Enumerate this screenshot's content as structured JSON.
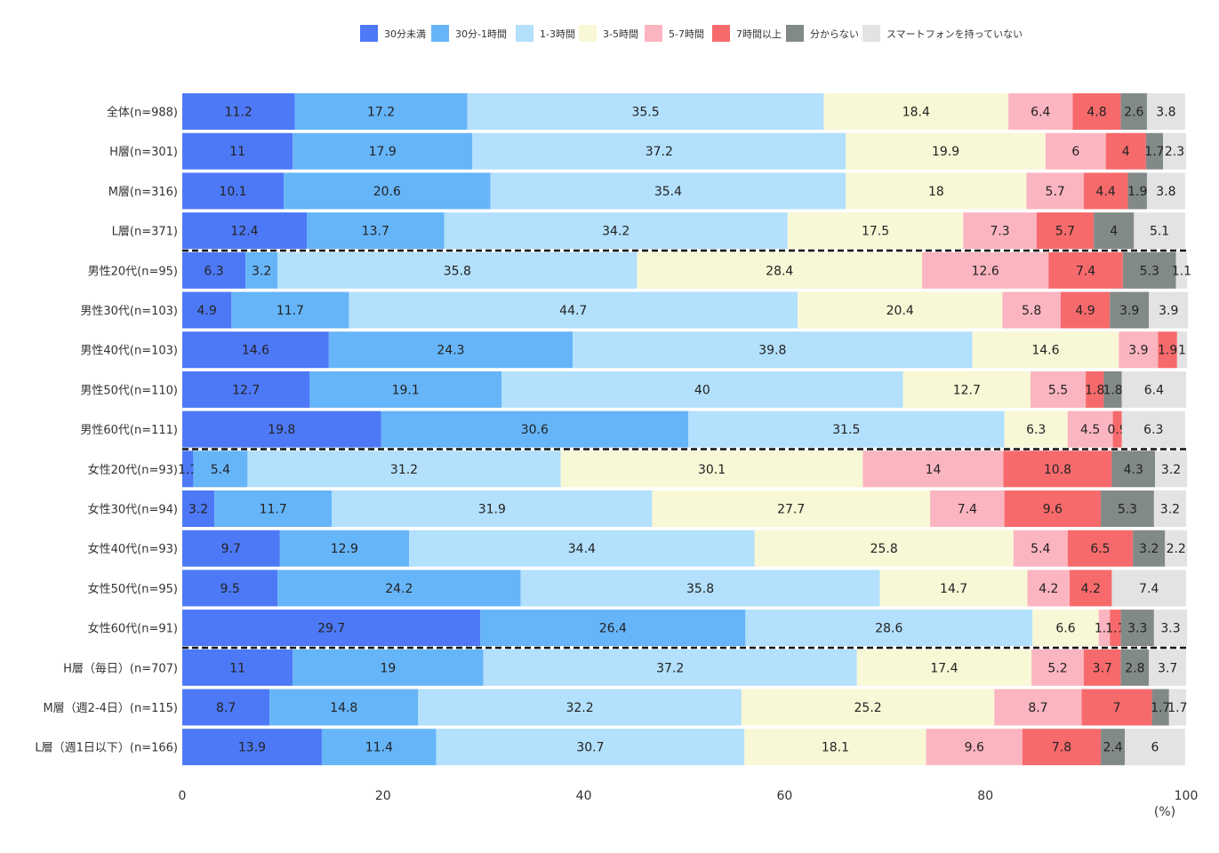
{
  "chart_data": {
    "type": "bar",
    "orientation": "horizontal",
    "stacked": true,
    "xunit": "(%)",
    "xlim": [
      0,
      100
    ],
    "xticks": [
      0,
      20,
      40,
      60,
      80,
      100
    ],
    "legend_position": "top",
    "grid": false,
    "categories": [
      "全体(n=988)",
      "H層(n=301)",
      "M層(n=316)",
      "L層(n=371)",
      "男性20代(n=95)",
      "男性30代(n=103)",
      "男性40代(n=103)",
      "男性50代(n=110)",
      "男性60代(n=111)",
      "女性20代(n=93)",
      "女性30代(n=94)",
      "女性40代(n=93)",
      "女性50代(n=95)",
      "女性60代(n=91)",
      "H層（毎日）(n=707)",
      "M層（週2-4日）(n=115)",
      "L層（週1日以下）(n=166)"
    ],
    "group_separators_after": [
      3,
      8,
      13
    ],
    "series": [
      {
        "name": "30分未満",
        "color": "#4d79f7",
        "values": [
          11.2,
          11,
          10.1,
          12.4,
          6.3,
          4.9,
          14.6,
          12.7,
          19.8,
          1.1,
          3.2,
          9.7,
          9.5,
          29.7,
          11,
          8.7,
          13.9
        ]
      },
      {
        "name": "30分-1時間",
        "color": "#66b5f9",
        "values": [
          17.2,
          17.9,
          20.6,
          13.7,
          3.2,
          11.7,
          24.3,
          19.1,
          30.6,
          5.4,
          11.7,
          12.9,
          24.2,
          26.4,
          19,
          14.8,
          11.4
        ]
      },
      {
        "name": "1-3時間",
        "color": "#b3e0fc",
        "values": [
          35.5,
          37.2,
          35.4,
          34.2,
          35.8,
          44.7,
          39.8,
          40,
          31.5,
          31.2,
          31.9,
          34.4,
          35.8,
          28.6,
          37.2,
          32.2,
          30.7
        ]
      },
      {
        "name": "3-5時間",
        "color": "#f8f7d6",
        "values": [
          18.4,
          19.9,
          18,
          17.5,
          28.4,
          20.4,
          14.6,
          12.7,
          6.3,
          30.1,
          27.7,
          25.8,
          14.7,
          6.6,
          17.4,
          25.2,
          18.1
        ]
      },
      {
        "name": "5-7時間",
        "color": "#fbb5c0",
        "values": [
          6.4,
          6,
          5.7,
          7.3,
          12.6,
          5.8,
          3.9,
          5.5,
          4.5,
          14,
          7.4,
          5.4,
          4.2,
          1.1,
          5.2,
          8.7,
          9.6
        ]
      },
      {
        "name": "7時間以上",
        "color": "#f76a6c",
        "values": [
          4.8,
          4,
          4.4,
          5.7,
          7.4,
          4.9,
          1.9,
          1.8,
          0.9,
          10.8,
          9.6,
          6.5,
          4.2,
          1.1,
          3.7,
          7,
          7.8
        ]
      },
      {
        "name": "分からない",
        "color": "#828a88",
        "values": [
          2.6,
          1.7,
          1.9,
          4,
          5.3,
          3.9,
          0,
          1.8,
          0,
          4.3,
          5.3,
          3.2,
          0,
          3.3,
          2.8,
          1.7,
          2.4
        ]
      },
      {
        "name": "スマートフォンを持っていない",
        "color": "#e3e3e3",
        "values": [
          3.8,
          2.3,
          3.8,
          5.1,
          1.1,
          3.9,
          1,
          6.4,
          6.3,
          3.2,
          3.2,
          2.2,
          7.4,
          3.3,
          3.7,
          1.7,
          6
        ]
      }
    ],
    "data_labels": [
      [
        "11.2",
        "17.2",
        "35.5",
        "18.4",
        "6.4",
        "4.8",
        "2.6",
        "3.8"
      ],
      [
        "11",
        "17.9",
        "37.2",
        "19.9",
        "6",
        "4",
        "1.7",
        "2.3"
      ],
      [
        "10.1",
        "20.6",
        "35.4",
        "18",
        "5.7",
        "4.4",
        "1.9",
        "3.8"
      ],
      [
        "12.4",
        "13.7",
        "34.2",
        "17.5",
        "7.3",
        "5.7",
        "4",
        "5.1"
      ],
      [
        "6.3",
        "3.2",
        "35.8",
        "28.4",
        "12.6",
        "7.4",
        "5.3",
        "1.1"
      ],
      [
        "4.9",
        "11.7",
        "44.7",
        "20.4",
        "5.8",
        "4.9",
        "3.9",
        "3.9"
      ],
      [
        "14.6",
        "24.3",
        "39.8",
        "14.6",
        "3.9",
        "1.9",
        "",
        "1"
      ],
      [
        "12.7",
        "19.1",
        "40",
        "12.7",
        "5.5",
        "1.8",
        "1.8",
        "6.4"
      ],
      [
        "19.8",
        "30.6",
        "31.5",
        "6.3",
        "4.5",
        "0.9",
        "",
        "6.3"
      ],
      [
        "1.1",
        "5.4",
        "31.2",
        "30.1",
        "14",
        "10.8",
        "4.3",
        "3.2"
      ],
      [
        "3.2",
        "11.7",
        "31.9",
        "27.7",
        "7.4",
        "9.6",
        "5.3",
        "3.2"
      ],
      [
        "9.7",
        "12.9",
        "34.4",
        "25.8",
        "5.4",
        "6.5",
        "3.2",
        "2.2"
      ],
      [
        "9.5",
        "24.2",
        "35.8",
        "14.7",
        "4.2",
        "4.2",
        "",
        "7.4"
      ],
      [
        "29.7",
        "26.4",
        "28.6",
        "6.6",
        "1.1",
        "1.1",
        "3.3",
        "3.3"
      ],
      [
        "11",
        "19",
        "37.2",
        "17.4",
        "5.2",
        "3.7",
        "2.8",
        "3.7"
      ],
      [
        "8.7",
        "14.8",
        "32.2",
        "25.2",
        "8.7",
        "7",
        "1.7",
        "1.7"
      ],
      [
        "13.9",
        "11.4",
        "30.7",
        "18.1",
        "9.6",
        "7.8",
        "2.4",
        "6"
      ]
    ]
  }
}
